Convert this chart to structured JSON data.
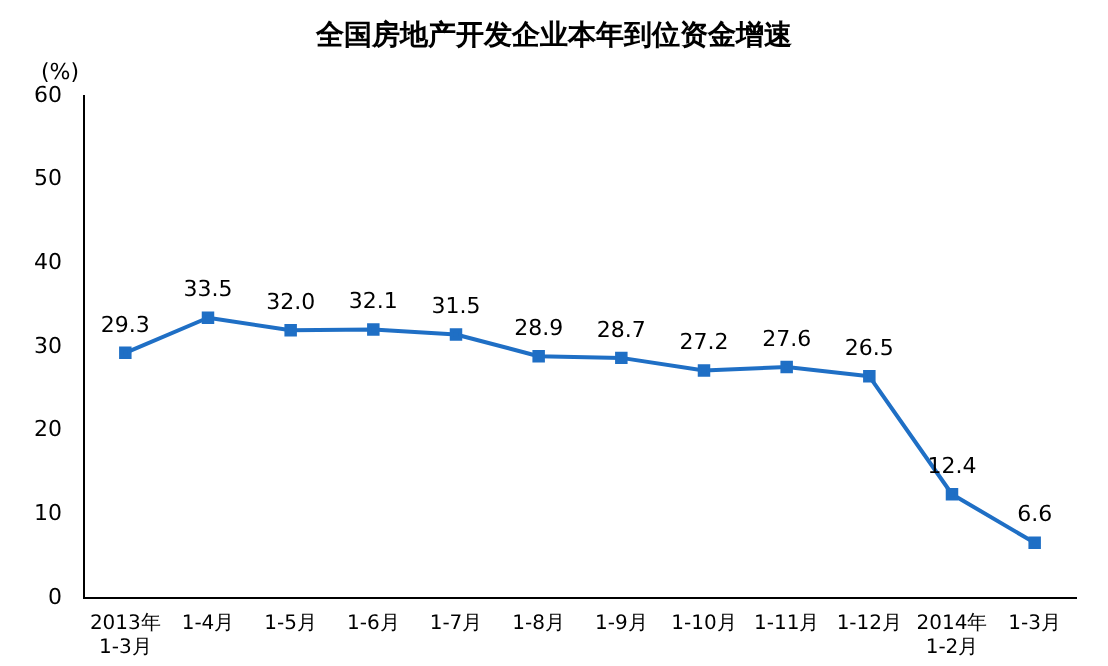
{
  "chart_data": {
    "type": "line",
    "title": "全国房地产开发企业本年到位资金增速",
    "ylabel": "(%)",
    "categories": [
      "2013年\n1-3月",
      "1-4月",
      "1-5月",
      "1-6月",
      "1-7月",
      "1-8月",
      "1-9月",
      "1-10月",
      "1-11月",
      "1-12月",
      "2014年\n1-2月",
      "1-3月"
    ],
    "series": [
      {
        "color": "#1f6fc5",
        "values": [
          29.3,
          33.5,
          32.0,
          32.1,
          31.5,
          28.9,
          28.7,
          27.2,
          27.6,
          26.5,
          12.4,
          6.6
        ]
      }
    ],
    "value_labels": [
      "29.3",
      "33.5",
      "32.0",
      "32.1",
      "31.5",
      "28.9",
      "28.7",
      "27.2",
      "27.6",
      "26.5",
      "12.4",
      "6.6"
    ],
    "ylim": [
      0,
      60
    ],
    "yticks": [
      0,
      10,
      20,
      30,
      40,
      50,
      60
    ],
    "grid": false,
    "legend": false,
    "marker": "square",
    "line_style": "solid"
  }
}
